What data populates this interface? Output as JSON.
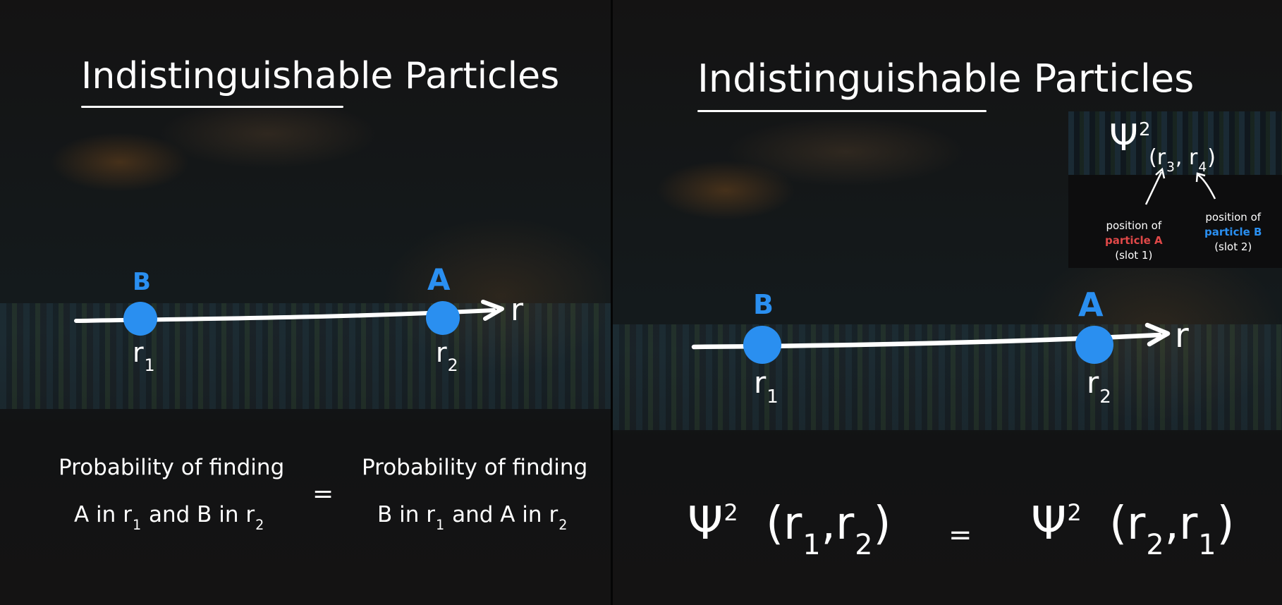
{
  "left_panel": {
    "title": "Indistinguishable Particles",
    "axis_label": "r",
    "particle_b_label": "B",
    "particle_a_label": "A",
    "pos_b": {
      "base": "r",
      "sub": "1"
    },
    "pos_a": {
      "base": "r",
      "sub": "2"
    },
    "lhs": {
      "line1": "Probability of finding",
      "line2_a": "A in ",
      "line2_b": " and B in "
    },
    "equals": "=",
    "rhs": {
      "line1": "Probability of finding",
      "line2_a": "B in ",
      "line2_b": " and A in "
    },
    "sub1": "1",
    "sub2": "2",
    "r": "r"
  },
  "right_panel": {
    "title": "Indistinguishable Particles",
    "axis_label": "r",
    "particle_b_label": "B",
    "particle_a_label": "A",
    "pos_b": {
      "base": "r",
      "sub": "1"
    },
    "pos_a": {
      "base": "r",
      "sub": "2"
    },
    "inset": {
      "psi": "Ψ",
      "sup": "2",
      "open": "(",
      "r3": "r",
      "sub3": "3",
      "comma": ",",
      "r4": "r",
      "sub4": "4",
      "close": ")",
      "note_a_line1": "position of",
      "note_a_line2": "particle A",
      "note_a_line3": "(slot 1)",
      "note_b_line1": "position of",
      "note_b_line2": "particle B",
      "note_b_line3": "(slot 2)"
    },
    "equation": {
      "psi": "Ψ",
      "sup": "2",
      "lhs_open": "(r",
      "lhs_sub1": "1",
      "comma": ",",
      "lhs_r": "r",
      "lhs_sub2": "2",
      "close": ")",
      "equals": "=",
      "rhs_open": "(r",
      "rhs_sub1": "2",
      "rhs_r": "r",
      "rhs_sub2": "1"
    }
  },
  "colors": {
    "particle": "#2a8ff0",
    "particle_a_note": "#e04848",
    "particle_b_note": "#2a8ff0",
    "ink": "#ffffff"
  }
}
